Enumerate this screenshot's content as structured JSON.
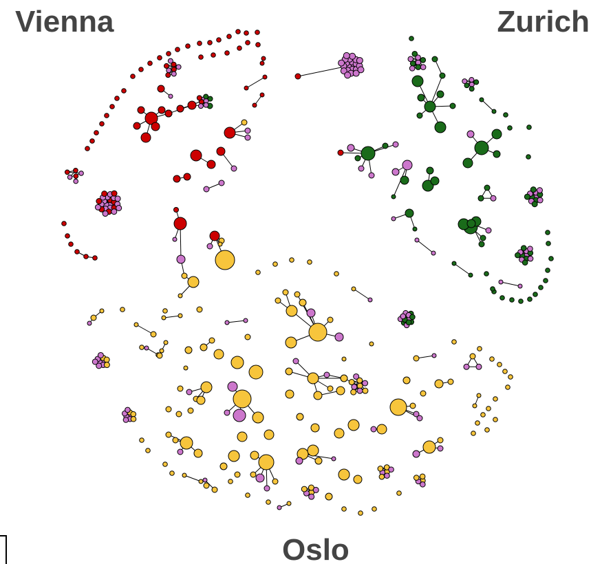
{
  "labels": {
    "vienna": "Vienna",
    "zurich": "Zurich",
    "oslo": "Oslo"
  },
  "colors": {
    "vienna": "#cc0000",
    "zurich": "#1a6b1a",
    "oslo": "#f7c53c",
    "shared": "#cc77cc",
    "edge": "#000000",
    "label_text": "#444444"
  },
  "legend_note": "Three-community network graph with cities as community labels"
}
